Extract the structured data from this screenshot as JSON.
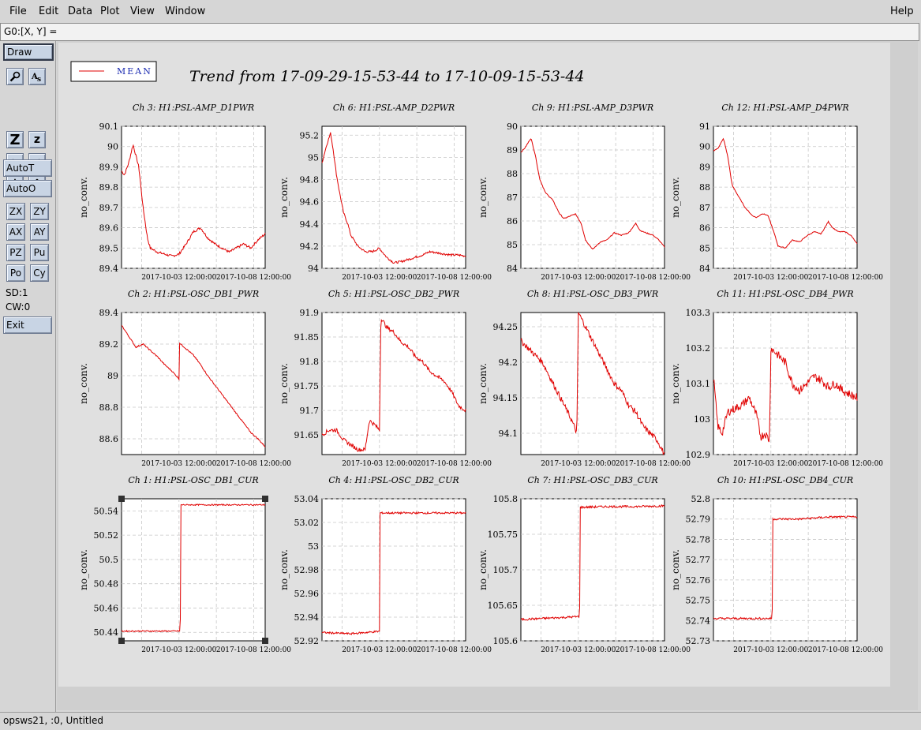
{
  "menu": {
    "file": "File",
    "edit": "Edit",
    "data": "Data",
    "plot": "Plot",
    "view": "View",
    "window": "Window",
    "help": "Help"
  },
  "coord_label": "G0:[X, Y] =",
  "toolbar": {
    "draw": "Draw",
    "autot": "AutoT",
    "autoo": "AutoO",
    "zx": "ZX",
    "zy": "ZY",
    "ax": "AX",
    "ay": "AY",
    "pz": "PZ",
    "pu": "Pu",
    "po": "Po",
    "cy": "Cy",
    "sd": "SD:1",
    "cw": "CW:0",
    "exit": "Exit",
    "icons": [
      "magnify-icon",
      "text-icon",
      "zoom-in-icon",
      "zoom-out-icon",
      "arrow-left-icon",
      "arrow-right-icon",
      "arrow-down-icon",
      "arrow-up-icon"
    ]
  },
  "status": "opsws21, :0, Untitled",
  "legend": {
    "label": "MEAN",
    "color": "#e00000"
  },
  "page_title": "Trend from 17-09-29-15-53-44 to 17-10-09-15-53-44",
  "chart_data": [
    {
      "type": "line",
      "title": "Ch 3: H1:PSL-AMP_D1PWR",
      "ylabel": "no_conv.",
      "yticks": [
        "90.1",
        "90",
        "89.9",
        "89.8",
        "89.7",
        "89.6",
        "89.5",
        "89.4"
      ],
      "ylim": [
        89.4,
        90.1
      ],
      "xticks": [
        "2017-10-03 12:00:00",
        "2017-10-08 12:00:00"
      ],
      "x": [
        0,
        0.02,
        0.05,
        0.08,
        0.12,
        0.15,
        0.18,
        0.2,
        0.25,
        0.3,
        0.35,
        0.4,
        0.45,
        0.5,
        0.55,
        0.6,
        0.65,
        0.7,
        0.75,
        0.8,
        0.85,
        0.9,
        0.95,
        1.0
      ],
      "y": [
        89.88,
        89.86,
        89.92,
        90.01,
        89.9,
        89.7,
        89.55,
        89.5,
        89.48,
        89.47,
        89.46,
        89.47,
        89.52,
        89.58,
        89.6,
        89.55,
        89.52,
        89.5,
        89.48,
        89.5,
        89.52,
        89.5,
        89.54,
        89.57
      ],
      "noise": 0.006
    },
    {
      "type": "line",
      "title": "Ch 6: H1:PSL-AMP_D2PWR",
      "ylabel": "no_conv.",
      "yticks": [
        "95.2",
        "95",
        "94.8",
        "94.6",
        "94.4",
        "94.2",
        "94"
      ],
      "ylim": [
        94,
        95.28
      ],
      "xticks": [
        "2017-10-03 12:00:00",
        "2017-10-08 12:00:00"
      ],
      "x": [
        0,
        0.03,
        0.06,
        0.08,
        0.1,
        0.12,
        0.15,
        0.18,
        0.2,
        0.25,
        0.3,
        0.35,
        0.4,
        0.45,
        0.5,
        0.55,
        0.6,
        0.65,
        0.7,
        0.75,
        0.8,
        0.85,
        0.9,
        0.95,
        1.0
      ],
      "y": [
        94.95,
        95.1,
        95.22,
        95.05,
        94.85,
        94.7,
        94.5,
        94.4,
        94.3,
        94.2,
        94.15,
        94.15,
        94.18,
        94.1,
        94.05,
        94.06,
        94.08,
        94.1,
        94.12,
        94.15,
        94.14,
        94.13,
        94.12,
        94.12,
        94.11
      ],
      "noise": 0.01
    },
    {
      "type": "line",
      "title": "Ch 9: H1:PSL-AMP_D3PWR",
      "ylabel": "no_conv.",
      "yticks": [
        "90",
        "89",
        "88",
        "87",
        "86",
        "85",
        "84"
      ],
      "ylim": [
        84,
        90
      ],
      "xticks": [
        "2017-10-03 12:00:00",
        "2017-10-08 12:00:00"
      ],
      "x": [
        0,
        0.03,
        0.07,
        0.1,
        0.13,
        0.17,
        0.22,
        0.27,
        0.3,
        0.34,
        0.38,
        0.42,
        0.45,
        0.5,
        0.55,
        0.6,
        0.65,
        0.7,
        0.75,
        0.8,
        0.83,
        0.87,
        0.92,
        0.96,
        1.0
      ],
      "y": [
        88.9,
        89.1,
        89.5,
        88.8,
        87.8,
        87.2,
        86.9,
        86.3,
        86.1,
        86.2,
        86.3,
        85.9,
        85.2,
        84.8,
        85.1,
        85.2,
        85.5,
        85.4,
        85.5,
        85.9,
        85.6,
        85.5,
        85.4,
        85.2,
        84.9
      ],
      "noise": 0.02
    },
    {
      "type": "line",
      "title": "Ch 12: H1:PSL-AMP_D4PWR",
      "ylabel": "no_conv.",
      "yticks": [
        "91",
        "90",
        "89",
        "88",
        "87",
        "86",
        "85",
        "84"
      ],
      "ylim": [
        84,
        91
      ],
      "xticks": [
        "2017-10-03 12:00:00",
        "2017-10-08 12:00:00"
      ],
      "x": [
        0,
        0.03,
        0.07,
        0.1,
        0.13,
        0.17,
        0.22,
        0.27,
        0.3,
        0.34,
        0.38,
        0.42,
        0.45,
        0.5,
        0.55,
        0.6,
        0.65,
        0.7,
        0.75,
        0.8,
        0.83,
        0.87,
        0.92,
        0.96,
        1.0
      ],
      "y": [
        89.8,
        89.9,
        90.4,
        89.5,
        88.1,
        87.6,
        87.0,
        86.6,
        86.5,
        86.7,
        86.6,
        85.8,
        85.1,
        85.0,
        85.4,
        85.3,
        85.6,
        85.8,
        85.7,
        86.3,
        86.0,
        85.8,
        85.8,
        85.6,
        85.2
      ],
      "noise": 0.02
    },
    {
      "type": "line",
      "title": "Ch 2: H1:PSL-OSC_DB1_PWR",
      "ylabel": "no_conv.",
      "yticks": [
        "89.4",
        "89.2",
        "89",
        "88.8",
        "88.6"
      ],
      "ylim": [
        88.5,
        89.4
      ],
      "xticks": [
        "2017-10-03 12:00:00",
        "2017-10-08 12:00:00"
      ],
      "x": [
        0,
        0.05,
        0.1,
        0.15,
        0.2,
        0.25,
        0.3,
        0.35,
        0.4,
        0.399,
        0.4,
        0.45,
        0.5,
        0.55,
        0.6,
        0.65,
        0.7,
        0.75,
        0.8,
        0.85,
        0.9,
        0.95,
        1.0
      ],
      "y": [
        89.32,
        89.25,
        89.18,
        89.2,
        89.16,
        89.12,
        89.07,
        89.03,
        88.98,
        88.98,
        89.21,
        89.17,
        89.13,
        89.07,
        89.0,
        88.94,
        88.88,
        88.82,
        88.76,
        88.7,
        88.64,
        88.6,
        88.55
      ],
      "noise": 0.004
    },
    {
      "type": "line",
      "title": "Ch 5: H1:PSL-OSC_DB2_PWR",
      "ylabel": "no_conv.",
      "yticks": [
        "91.9",
        "91.85",
        "91.8",
        "91.75",
        "91.7",
        "91.65"
      ],
      "ylim": [
        91.61,
        91.9
      ],
      "xticks": [
        "2017-10-03 12:00:00",
        "2017-10-08 12:00:00"
      ],
      "x": [
        0,
        0.05,
        0.1,
        0.15,
        0.2,
        0.25,
        0.3,
        0.33,
        0.37,
        0.4,
        0.41,
        0.45,
        0.5,
        0.55,
        0.6,
        0.65,
        0.7,
        0.75,
        0.8,
        0.85,
        0.9,
        0.95,
        1.0
      ],
      "y": [
        91.65,
        91.66,
        91.66,
        91.64,
        91.63,
        91.62,
        91.62,
        91.68,
        91.67,
        91.66,
        91.89,
        91.87,
        91.86,
        91.84,
        91.83,
        91.81,
        91.8,
        91.78,
        91.77,
        91.76,
        91.74,
        91.71,
        91.7
      ],
      "noise": 0.004
    },
    {
      "type": "line",
      "title": "Ch 8: H1:PSL-OSC_DB3_PWR",
      "ylabel": "no_conv.",
      "yticks": [
        "94.25",
        "94.2",
        "94.15",
        "94.1"
      ],
      "ylim": [
        94.07,
        94.27
      ],
      "xticks": [
        "2017-10-03 12:00:00",
        "2017-10-08 12:00:00"
      ],
      "x": [
        0,
        0.05,
        0.1,
        0.15,
        0.2,
        0.25,
        0.3,
        0.35,
        0.39,
        0.4,
        0.45,
        0.5,
        0.55,
        0.6,
        0.65,
        0.7,
        0.75,
        0.8,
        0.85,
        0.9,
        0.95,
        1.0
      ],
      "y": [
        94.23,
        94.22,
        94.21,
        94.2,
        94.18,
        94.16,
        94.14,
        94.12,
        94.1,
        94.27,
        94.25,
        94.23,
        94.21,
        94.19,
        94.17,
        94.16,
        94.14,
        94.13,
        94.11,
        94.1,
        94.09,
        94.07
      ],
      "noise": 0.004
    },
    {
      "type": "line",
      "title": "Ch 11: H1:PSL-OSC_DB4_PWR",
      "ylabel": "no_conv.",
      "yticks": [
        "103.3",
        "103.2",
        "103.1",
        "103",
        "102.9"
      ],
      "ylim": [
        102.9,
        103.3
      ],
      "xticks": [
        "2017-10-03 12:00:00",
        "2017-10-08 12:00:00"
      ],
      "x": [
        0,
        0.03,
        0.06,
        0.1,
        0.15,
        0.2,
        0.25,
        0.3,
        0.33,
        0.36,
        0.39,
        0.4,
        0.45,
        0.5,
        0.55,
        0.6,
        0.65,
        0.7,
        0.75,
        0.8,
        0.85,
        0.9,
        0.95,
        1.0
      ],
      "y": [
        103.12,
        102.98,
        102.96,
        103.02,
        103.03,
        103.04,
        103.06,
        103.01,
        102.95,
        102.96,
        102.94,
        103.2,
        103.18,
        103.16,
        103.1,
        103.08,
        103.1,
        103.12,
        103.11,
        103.09,
        103.1,
        103.08,
        103.07,
        103.06
      ],
      "noise": 0.012
    },
    {
      "type": "line",
      "title": "Ch 1: H1:PSL-OSC_DB1_CUR",
      "ylabel": "no_conv.",
      "yticks": [
        "50.54",
        "50.52",
        "50.5",
        "50.48",
        "50.46",
        "50.44"
      ],
      "ylim": [
        50.433,
        50.55
      ],
      "xticks": [
        "2017-10-03 12:00:00",
        "2017-10-08 12:00:00"
      ],
      "x": [
        0,
        0.2,
        0.4,
        0.409,
        0.41,
        0.6,
        0.8,
        1.0
      ],
      "y": [
        50.441,
        50.441,
        50.441,
        50.441,
        50.545,
        50.545,
        50.545,
        50.545
      ],
      "noise": 0.0005
    },
    {
      "type": "line",
      "title": "Ch 4: H1:PSL-OSC_DB2_CUR",
      "ylabel": "no_conv.",
      "yticks": [
        "53.04",
        "53.02",
        "53",
        "52.98",
        "52.96",
        "52.94",
        "52.92"
      ],
      "ylim": [
        52.92,
        53.04
      ],
      "xticks": [
        "2017-10-03 12:00:00",
        "2017-10-08 12:00:00"
      ],
      "x": [
        0,
        0.2,
        0.4,
        0.399,
        0.4,
        0.6,
        0.8,
        1.0
      ],
      "y": [
        52.927,
        52.926,
        52.928,
        52.928,
        53.028,
        53.028,
        53.028,
        53.028
      ],
      "noise": 0.0008
    },
    {
      "type": "line",
      "title": "Ch 7: H1:PSL-OSC_DB3_CUR",
      "ylabel": "no_conv.",
      "yticks": [
        "105.8",
        "105.75",
        "105.7",
        "105.65",
        "105.6"
      ],
      "ylim": [
        105.6,
        105.8
      ],
      "xticks": [
        "2017-10-03 12:00:00",
        "2017-10-08 12:00:00"
      ],
      "x": [
        0,
        0.2,
        0.4,
        0.409,
        0.41,
        0.6,
        0.8,
        1.0
      ],
      "y": [
        105.63,
        105.632,
        105.634,
        105.634,
        105.788,
        105.789,
        105.789,
        105.79
      ],
      "noise": 0.0015
    },
    {
      "type": "line",
      "title": "Ch 10: H1:PSL-OSC_DB4_CUR",
      "ylabel": "no_conv.",
      "yticks": [
        "52.8",
        "52.79",
        "52.78",
        "52.77",
        "52.76",
        "52.75",
        "52.74",
        "52.73"
      ],
      "ylim": [
        52.73,
        52.8
      ],
      "xticks": [
        "2017-10-03 12:00:00",
        "2017-10-08 12:00:00"
      ],
      "x": [
        0,
        0.2,
        0.4,
        0.409,
        0.41,
        0.6,
        0.8,
        1.0
      ],
      "y": [
        52.741,
        52.741,
        52.741,
        52.741,
        52.79,
        52.79,
        52.791,
        52.791
      ],
      "noise": 0.0005
    }
  ]
}
